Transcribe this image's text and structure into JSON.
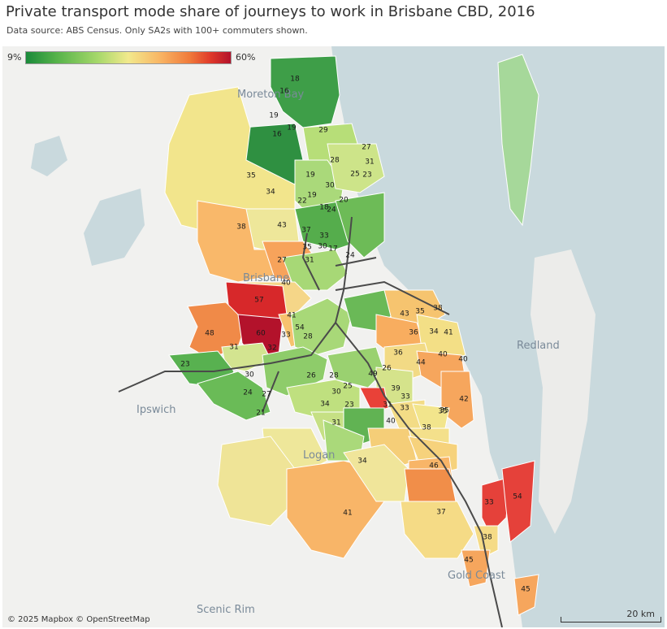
{
  "title": "Private transport mode share of journeys to work in Brisbane CBD, 2016",
  "subtitle": "Data source: ABS Census. Only SA2s with 100+ commuters shown.",
  "legend": {
    "min_label": "9%",
    "max_label": "60%",
    "min": 9,
    "max": 60
  },
  "colors": {
    "water": "#c9d9dd",
    "land": "#f1f1ef",
    "rail": "#4a4a4a"
  },
  "places": [
    "Moreton Bay",
    "Brisbane",
    "Ipswich",
    "Logan",
    "Redland",
    "Gold Coast",
    "Scenic Rim"
  ],
  "attribution": "© 2025 Mapbox © OpenStreetMap",
  "scale_label": "20 km",
  "values": [
    18,
    16,
    19,
    19,
    16,
    29,
    27,
    28,
    31,
    25,
    23,
    35,
    19,
    30,
    34,
    22,
    19,
    18,
    20,
    24,
    38,
    43,
    37,
    33,
    35,
    30,
    17,
    24,
    27,
    31,
    40,
    57,
    41,
    48,
    60,
    33,
    54,
    28,
    31,
    23,
    32,
    30,
    24,
    27,
    21,
    36,
    26,
    28,
    25,
    30,
    34,
    23,
    31,
    49,
    26,
    39,
    33,
    40,
    33,
    31,
    35,
    43,
    35,
    38,
    36,
    34,
    41,
    44,
    40,
    40,
    42,
    35,
    38,
    46,
    34,
    41,
    37,
    33,
    54,
    38,
    45,
    45
  ]
}
